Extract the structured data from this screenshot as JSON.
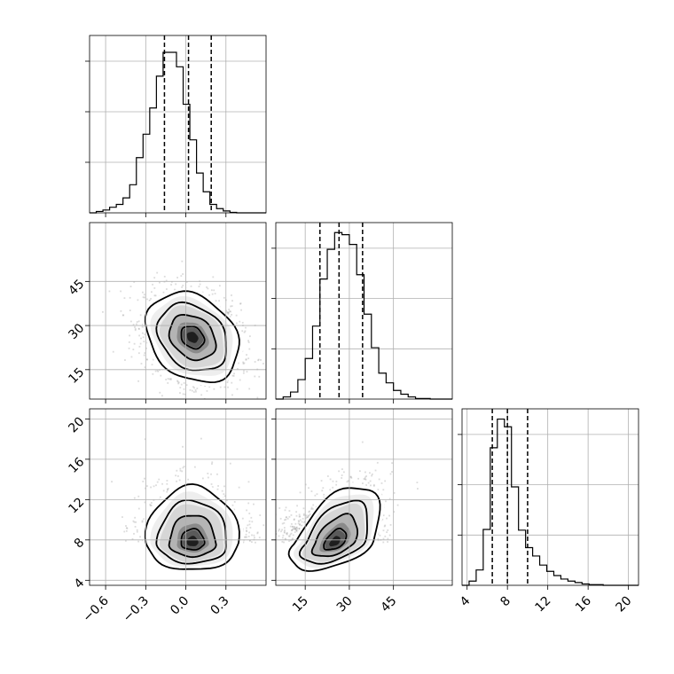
{
  "chart_data": {
    "type": "corner",
    "title": "",
    "parameters": [
      {
        "label": "",
        "range": [
          -0.72,
          0.6
        ],
        "ticks": [
          -0.6,
          -0.3,
          0.0,
          0.3
        ],
        "tick_labels": [
          "−0.6",
          "−0.3",
          "0.0",
          "0.3"
        ],
        "quantiles": [
          -0.16,
          0.02,
          0.19
        ]
      },
      {
        "label": "",
        "range": [
          5,
          65
        ],
        "ticks": [
          15,
          30,
          45
        ],
        "tick_labels": [
          "15",
          "30",
          "45"
        ],
        "quantiles": [
          20,
          26.5,
          34.5
        ]
      },
      {
        "label": "",
        "range": [
          3.5,
          21
        ],
        "ticks": [
          4,
          8,
          12,
          16,
          20
        ],
        "tick_labels": [
          "4",
          "8",
          "12",
          "16",
          "20"
        ],
        "quantiles": [
          6.5,
          8.0,
          10.0
        ]
      }
    ],
    "histograms": [
      {
        "param_index": 0,
        "bin_start": -0.72,
        "bin_width": 0.05,
        "counts": [
          0,
          3,
          6,
          12,
          18,
          32,
          60,
          118,
          168,
          224,
          292,
          343,
          343,
          312,
          232,
          156,
          85,
          45,
          18,
          9,
          4,
          1,
          0,
          0,
          0,
          0,
          0
        ],
        "ymax": 360
      },
      {
        "param_index": 1,
        "bin_start": 5,
        "bin_width": 2.5,
        "counts": [
          0,
          4,
          13,
          36,
          75,
          135,
          222,
          277,
          308,
          304,
          286,
          230,
          157,
          95,
          48,
          30,
          16,
          9,
          4,
          1,
          1,
          0,
          0,
          0
        ],
        "ymax": 310
      },
      {
        "param_index": 2,
        "bin_start": 3.5,
        "bin_width": 0.7,
        "counts": [
          0,
          6,
          22,
          80,
          197,
          238,
          227,
          141,
          79,
          54,
          42,
          29,
          20,
          14,
          9,
          6,
          4,
          2,
          1,
          1,
          0,
          0,
          0,
          0,
          0
        ],
        "ymax": 240
      }
    ],
    "pairs": [
      {
        "x_param": 0,
        "y_param": 1,
        "center": [
          0.05,
          26.0
        ],
        "sigma": [
          0.17,
          7.5
        ],
        "correlation": -0.25
      },
      {
        "x_param": 0,
        "y_param": 2,
        "center": [
          0.05,
          7.7
        ],
        "sigma": [
          0.17,
          2.2
        ],
        "correlation": 0.0
      },
      {
        "x_param": 1,
        "y_param": 2,
        "center": [
          25.0,
          7.7
        ],
        "sigma": [
          7.5,
          2.2
        ],
        "correlation": 0.5
      }
    ],
    "contour_levels": [
      0.5,
      1.0,
      1.5,
      2.0
    ],
    "grid": true
  }
}
